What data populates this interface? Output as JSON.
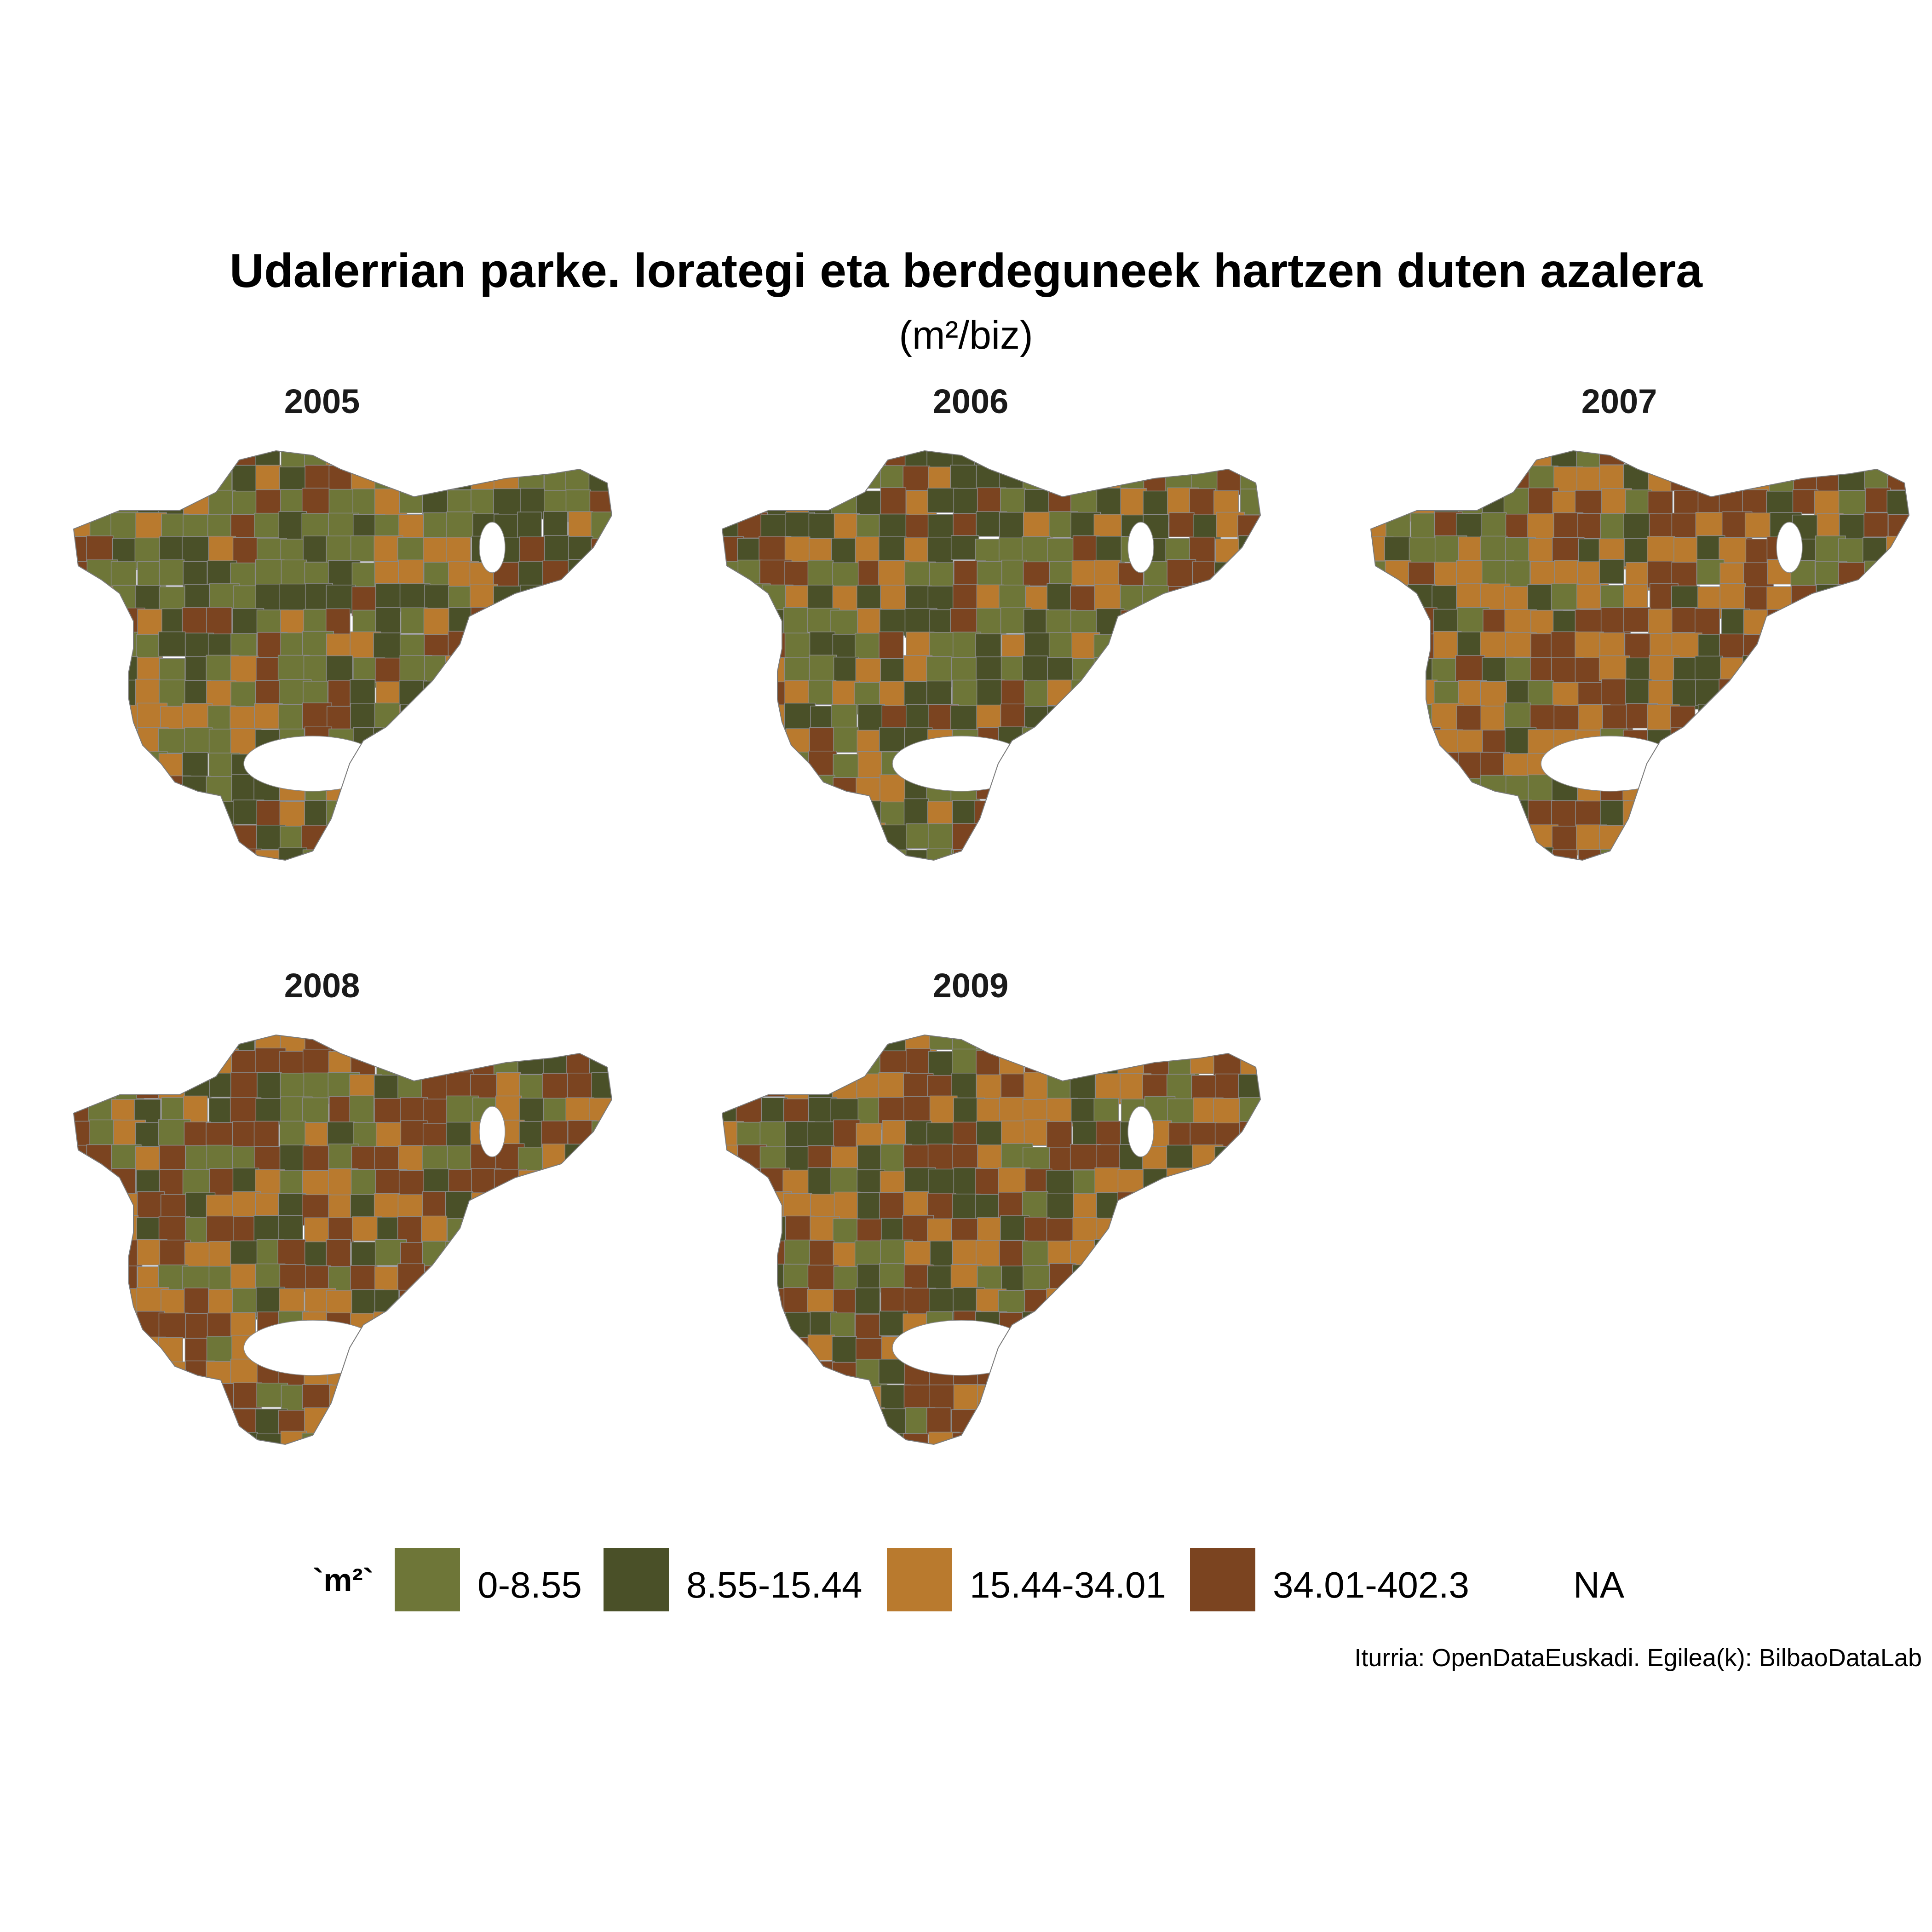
{
  "title": "Udalerrian parke. lorategi eta berdeguneek hartzen duten azalera",
  "subtitle": "(m²/biz)",
  "panels": [
    {
      "year": "2005",
      "palette": [
        "#6e7638",
        "#4a5028",
        "#6e7638",
        "#b97a2e",
        "#7b4420",
        "#4a5028"
      ]
    },
    {
      "year": "2006",
      "palette": [
        "#6e7638",
        "#4a5028",
        "#b97a2e",
        "#6e7638",
        "#7b4420",
        "#4a5028"
      ]
    },
    {
      "year": "2007",
      "palette": [
        "#b97a2e",
        "#7b4420",
        "#6e7638",
        "#4a5028",
        "#b97a2e",
        "#7b4420"
      ]
    },
    {
      "year": "2008",
      "palette": [
        "#6e7638",
        "#7b4420",
        "#b97a2e",
        "#4a5028",
        "#7b4420",
        "#b97a2e"
      ]
    },
    {
      "year": "2009",
      "palette": [
        "#b97a2e",
        "#7b4420",
        "#6e7638",
        "#4a5028",
        "#b97a2e",
        "#7b4420"
      ]
    }
  ],
  "legend": {
    "title": "`m²`",
    "items": [
      {
        "label": "0-8.55",
        "color": "#6e7638"
      },
      {
        "label": "8.55-15.44",
        "color": "#4a5028"
      },
      {
        "label": "15.44-34.01",
        "color": "#b97a2e"
      },
      {
        "label": "34.01-402.3",
        "color": "#7b4420"
      },
      {
        "label": "NA",
        "color": "#ffffff"
      }
    ]
  },
  "caption": "Iturria: OpenDataEuskadi. Egilea(k): BilbaoDataLab"
}
